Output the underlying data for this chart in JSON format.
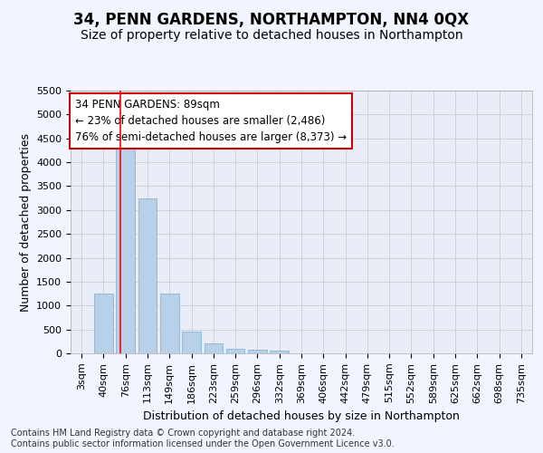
{
  "title": "34, PENN GARDENS, NORTHAMPTON, NN4 0QX",
  "subtitle": "Size of property relative to detached houses in Northampton",
  "xlabel": "Distribution of detached houses by size in Northampton",
  "ylabel": "Number of detached properties",
  "footer_line1": "Contains HM Land Registry data © Crown copyright and database right 2024.",
  "footer_line2": "Contains public sector information licensed under the Open Government Licence v3.0.",
  "bin_labels": [
    "3sqm",
    "40sqm",
    "76sqm",
    "113sqm",
    "149sqm",
    "186sqm",
    "223sqm",
    "259sqm",
    "296sqm",
    "332sqm",
    "369sqm",
    "406sqm",
    "442sqm",
    "479sqm",
    "515sqm",
    "552sqm",
    "589sqm",
    "625sqm",
    "662sqm",
    "698sqm",
    "735sqm"
  ],
  "bar_values": [
    0,
    1250,
    4300,
    3250,
    1250,
    450,
    200,
    100,
    75,
    50,
    0,
    0,
    0,
    0,
    0,
    0,
    0,
    0,
    0,
    0,
    0
  ],
  "bar_color": "#b8d0e8",
  "bar_edge_color": "#8ab4d4",
  "red_line_x": 1.78,
  "annotation_text": "34 PENN GARDENS: 89sqm\n← 23% of detached houses are smaller (2,486)\n76% of semi-detached houses are larger (8,373) →",
  "annotation_box_color": "#ffffff",
  "annotation_border_color": "#cc0000",
  "ylim": [
    0,
    5500
  ],
  "yticks": [
    0,
    500,
    1000,
    1500,
    2000,
    2500,
    3000,
    3500,
    4000,
    4500,
    5000,
    5500
  ],
  "grid_color": "#cccccc",
  "background_color": "#f2f5ff",
  "plot_bg_color": "#e8edf8",
  "title_fontsize": 12,
  "subtitle_fontsize": 10,
  "axis_label_fontsize": 9,
  "tick_fontsize": 8,
  "annotation_fontsize": 8.5,
  "footer_fontsize": 7
}
